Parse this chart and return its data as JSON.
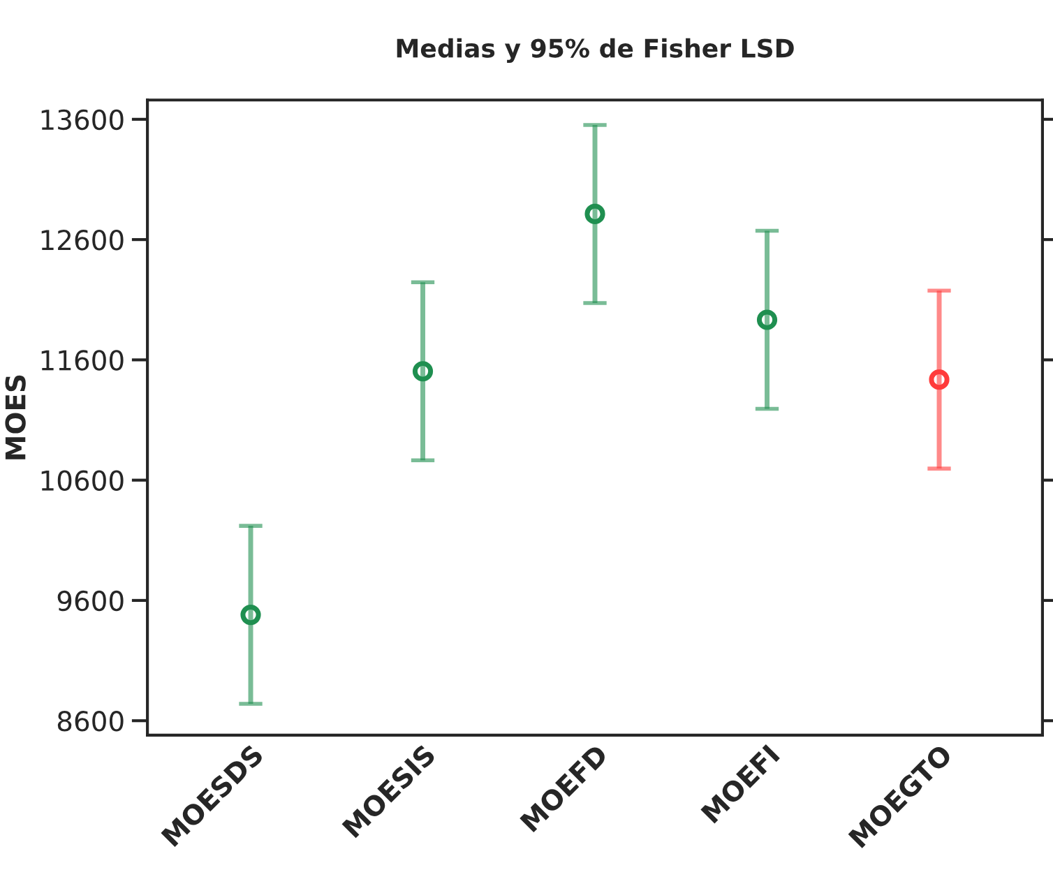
{
  "chart_data": {
    "type": "scatter",
    "title": "Medias y 95% de Fisher LSD",
    "ylabel": "MOES",
    "categories": [
      "MOESDS",
      "MOESIS",
      "MOEFD",
      "MOEFI",
      "MOEGTO"
    ],
    "values": [
      9480,
      11505,
      12813,
      11933,
      11436
    ],
    "errors": [
      740,
      740,
      740,
      740,
      740
    ],
    "colors": [
      "#1f8f50",
      "#1f8f50",
      "#1f8f50",
      "#1f8f50",
      "#ff3b3b"
    ],
    "ylim": [
      8480,
      13760
    ],
    "yticks": [
      8600,
      9600,
      10600,
      11600,
      12600,
      13600
    ],
    "marker": "circle",
    "grid": false,
    "legend": false
  }
}
